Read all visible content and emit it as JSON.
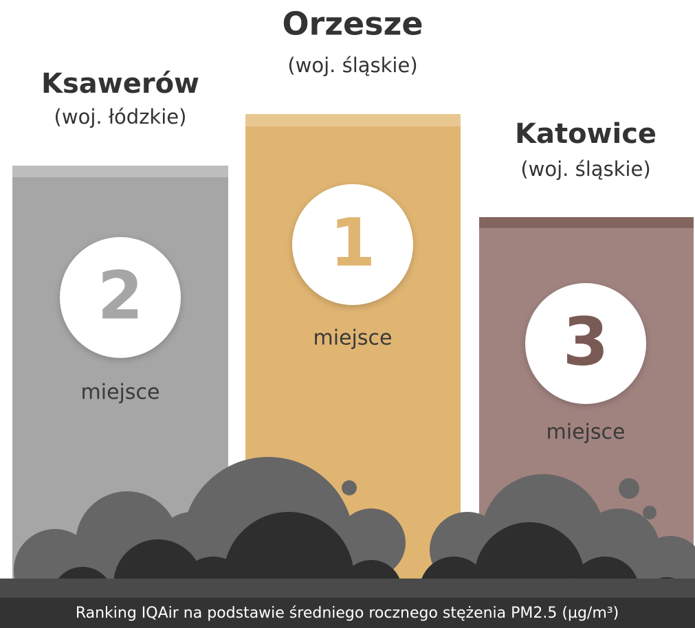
{
  "podium": [
    {
      "city": "Ksawerów",
      "region": "(woj. łódzkie)",
      "rank": 2,
      "label": "miejsce"
    },
    {
      "city": "Orzesze",
      "region": "(woj. śląskie)",
      "rank": 1,
      "label": "miejsce"
    },
    {
      "city": "Katowice",
      "region": "(woj. śląskie)",
      "rank": 3,
      "label": "miejsce"
    }
  ],
  "footer": "Ranking IQAir na podstawie średniego rocznego stężenia PM2.5 (µg/m³)"
}
